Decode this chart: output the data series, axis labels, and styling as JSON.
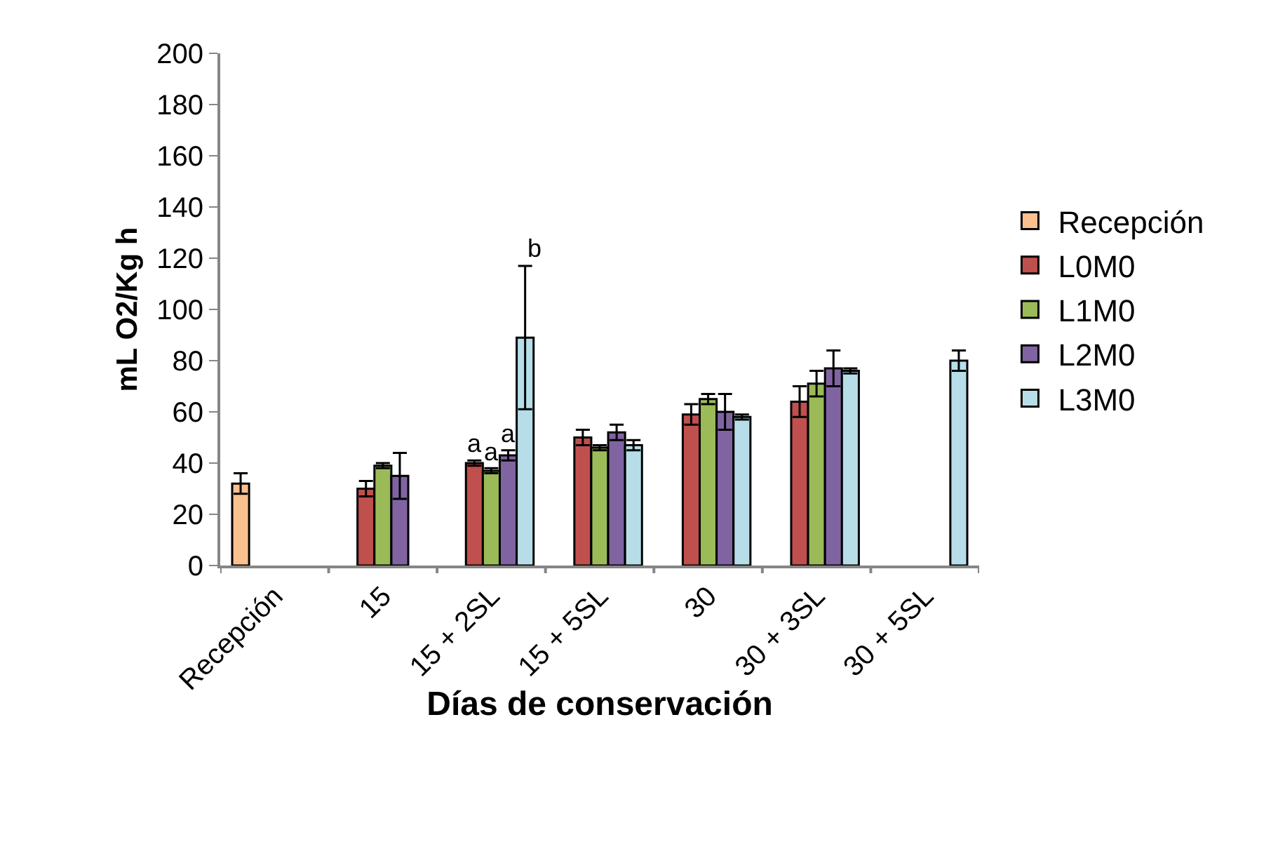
{
  "chart_data": {
    "type": "bar",
    "xlabel": "Días de conservación",
    "ylabel": "mL O2/Kg h",
    "categories": [
      "Recepción",
      "15",
      "15 + 2SL",
      "15 + 5SL",
      "30",
      "30 + 3SL",
      "30 + 5SL"
    ],
    "series": [
      {
        "name": "Recepción",
        "color": "#fac090",
        "values": [
          32,
          null,
          null,
          null,
          null,
          null,
          null
        ],
        "errors": [
          4,
          null,
          null,
          null,
          null,
          null,
          null
        ]
      },
      {
        "name": "L0M0",
        "color": "#c0504d",
        "values": [
          null,
          30,
          40,
          50,
          59,
          64,
          null
        ],
        "errors": [
          null,
          3,
          1,
          3,
          4,
          6,
          null
        ]
      },
      {
        "name": "L1M0",
        "color": "#9bbb59",
        "values": [
          null,
          39,
          37,
          46,
          65,
          71,
          null
        ],
        "errors": [
          null,
          1,
          1,
          1,
          2,
          5,
          null
        ]
      },
      {
        "name": "L2M0",
        "color": "#8064a2",
        "values": [
          null,
          35,
          43,
          52,
          60,
          77,
          null
        ],
        "errors": [
          null,
          9,
          2,
          3,
          7,
          7,
          null
        ]
      },
      {
        "name": "L3M0",
        "color": "#b7dee8",
        "values": [
          null,
          null,
          89,
          47,
          58,
          76,
          80
        ],
        "errors": [
          null,
          null,
          28,
          2,
          1,
          1,
          4
        ]
      }
    ],
    "ylim": [
      0,
      200
    ],
    "yticks": [
      0,
      20,
      40,
      60,
      80,
      100,
      120,
      140,
      160,
      180,
      200
    ],
    "grid": false,
    "legend": "right",
    "annotations": [
      {
        "text": "a",
        "x": "15 + 2SL",
        "y": 41
      },
      {
        "text": "a",
        "x": "15 + 2SL",
        "y": 38
      },
      {
        "text": "a",
        "x": "15 + 2SL",
        "y": 45
      },
      "b"
    ]
  }
}
